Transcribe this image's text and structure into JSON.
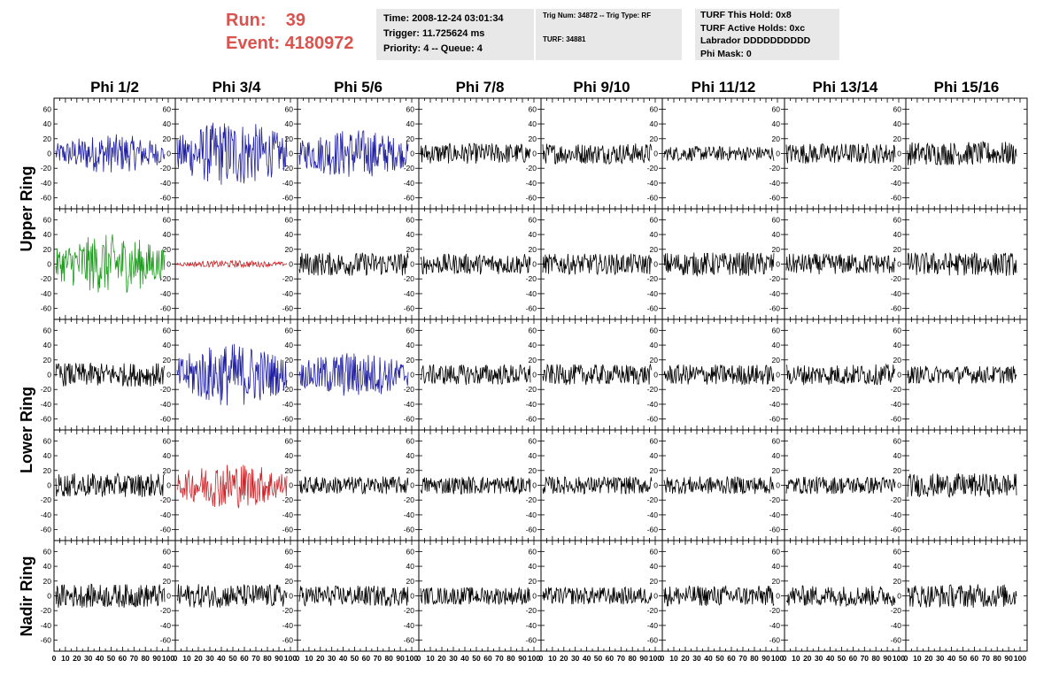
{
  "header": {
    "run_label": "Run:",
    "run_value": "39",
    "event_label": "Event:",
    "event_value": "4180972",
    "run_color": "#d9534f"
  },
  "time_box": {
    "time": "Time: 2008-12-24 03:01:34",
    "trigger": "Trigger: 11.725624 ms",
    "priority": "Priority: 4 -- Queue: 4"
  },
  "trig_box": {
    "trig_num": "Trig Num: 34872 -- Trig Type: RF",
    "turf": "TURF: 34881"
  },
  "turf_box": {
    "this_hold": "TURF This Hold: 0x8",
    "active_holds": "TURF Active Holds: 0xc",
    "labrador": "Labrador DDDDDDDDDD",
    "phi_mask": "Phi Mask: 0"
  },
  "columns": [
    "Phi 1/2",
    "Phi 3/4",
    "Phi 5/6",
    "Phi 7/8",
    "Phi 9/10",
    "Phi 11/12",
    "Phi 13/14",
    "Phi 15/16"
  ],
  "ring_labels": [
    "Upper Ring",
    "Lower Ring",
    "Nadir Ring"
  ],
  "axis": {
    "y_ticks": [
      60,
      40,
      20,
      0,
      -20,
      -40,
      -60
    ],
    "x_ticks": [
      0,
      10,
      20,
      30,
      40,
      50,
      60,
      70,
      80,
      90,
      100
    ],
    "ylim": [
      -70,
      70
    ],
    "xlim": [
      0,
      100
    ]
  },
  "colors": {
    "default": "#000000",
    "blue": "#1f1fa0",
    "green": "#1e9a1e",
    "red": "#c8262a"
  },
  "panels": [
    [
      "blue",
      "blue",
      "blue",
      "default",
      "default",
      "default",
      "default",
      "default"
    ],
    [
      "green",
      "red",
      "default",
      "default",
      "default",
      "default",
      "default",
      "default"
    ],
    [
      "default",
      "blue",
      "blue",
      "default",
      "default",
      "default",
      "default",
      "default"
    ],
    [
      "default",
      "red",
      "default",
      "default",
      "default",
      "default",
      "default",
      "default"
    ],
    [
      "default",
      "default",
      "default",
      "default",
      "default",
      "default",
      "default",
      "default"
    ]
  ],
  "amplitudes": [
    [
      22,
      38,
      28,
      14,
      14,
      10,
      14,
      16
    ],
    [
      34,
      4,
      16,
      14,
      14,
      16,
      14,
      16
    ],
    [
      16,
      36,
      26,
      14,
      14,
      14,
      14,
      12
    ],
    [
      16,
      26,
      12,
      12,
      12,
      12,
      12,
      16
    ],
    [
      16,
      16,
      14,
      12,
      12,
      14,
      14,
      16
    ]
  ]
}
